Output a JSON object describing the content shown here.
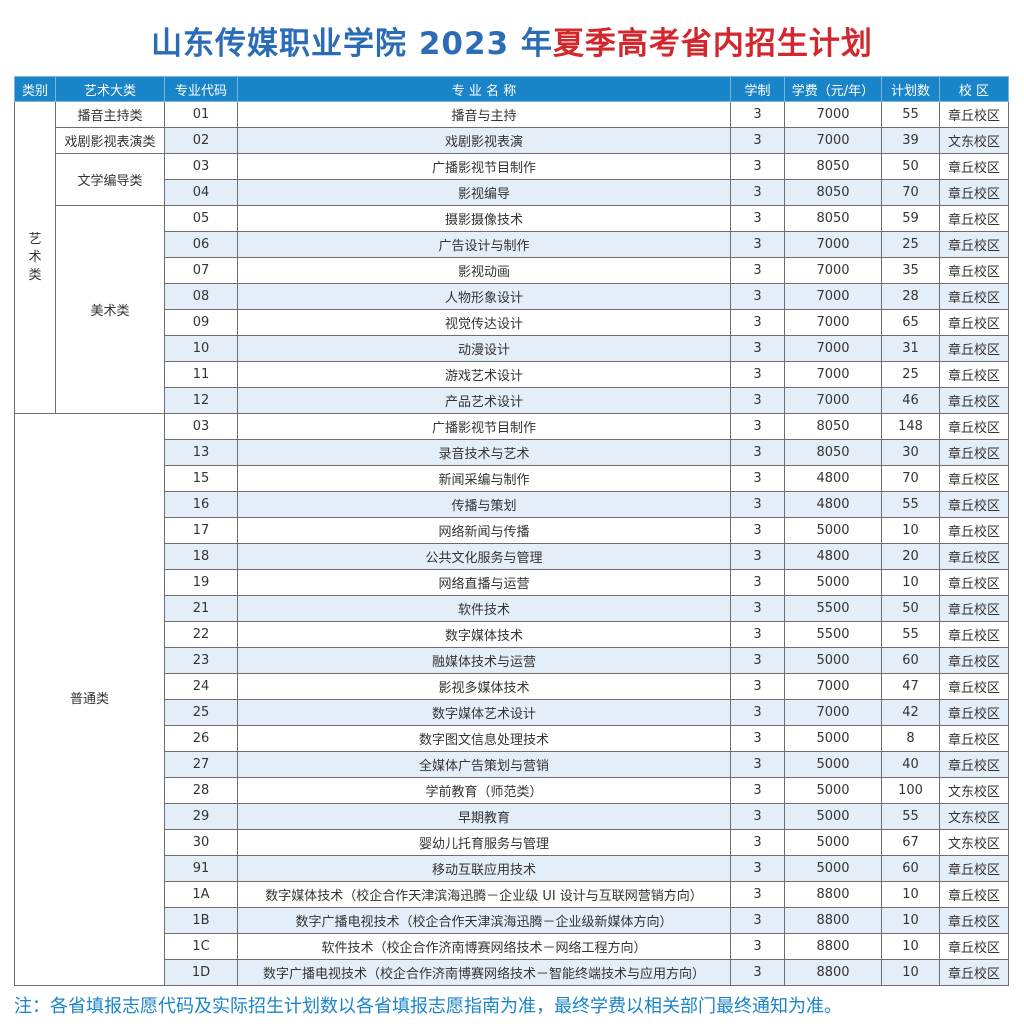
{
  "title": {
    "part1": "山东传媒职业学院 2023 年",
    "part2": "夏季高考省内招生计划"
  },
  "headers": [
    "类别",
    "艺术大类",
    "专业代码",
    "专 业 名 称",
    "学制",
    "学费（元/年）",
    "计划数",
    "校 区"
  ],
  "categories": {
    "art": "艺\n术\n类",
    "general": "普通类"
  },
  "subcategories": {
    "broadcast": "播音主持类",
    "drama": "戏剧影视表演类",
    "literature": "文学编导类",
    "fine_art": "美术类"
  },
  "rows": [
    {
      "code": "01",
      "name": "播音与主持",
      "years": "3",
      "fee": "7000",
      "plan": "55",
      "campus": "章丘校区"
    },
    {
      "code": "02",
      "name": "戏剧影视表演",
      "years": "3",
      "fee": "7000",
      "plan": "39",
      "campus": "文东校区"
    },
    {
      "code": "03",
      "name": "广播影视节目制作",
      "years": "3",
      "fee": "8050",
      "plan": "50",
      "campus": "章丘校区"
    },
    {
      "code": "04",
      "name": "影视编导",
      "years": "3",
      "fee": "8050",
      "plan": "70",
      "campus": "章丘校区"
    },
    {
      "code": "05",
      "name": "摄影摄像技术",
      "years": "3",
      "fee": "8050",
      "plan": "59",
      "campus": "章丘校区"
    },
    {
      "code": "06",
      "name": "广告设计与制作",
      "years": "3",
      "fee": "7000",
      "plan": "25",
      "campus": "章丘校区"
    },
    {
      "code": "07",
      "name": "影视动画",
      "years": "3",
      "fee": "7000",
      "plan": "35",
      "campus": "章丘校区"
    },
    {
      "code": "08",
      "name": "人物形象设计",
      "years": "3",
      "fee": "7000",
      "plan": "28",
      "campus": "章丘校区"
    },
    {
      "code": "09",
      "name": "视觉传达设计",
      "years": "3",
      "fee": "7000",
      "plan": "65",
      "campus": "章丘校区"
    },
    {
      "code": "10",
      "name": "动漫设计",
      "years": "3",
      "fee": "7000",
      "plan": "31",
      "campus": "章丘校区"
    },
    {
      "code": "11",
      "name": "游戏艺术设计",
      "years": "3",
      "fee": "7000",
      "plan": "25",
      "campus": "章丘校区"
    },
    {
      "code": "12",
      "name": "产品艺术设计",
      "years": "3",
      "fee": "7000",
      "plan": "46",
      "campus": "章丘校区"
    },
    {
      "code": "03",
      "name": "广播影视节目制作",
      "years": "3",
      "fee": "8050",
      "plan": "148",
      "campus": "章丘校区"
    },
    {
      "code": "13",
      "name": "录音技术与艺术",
      "years": "3",
      "fee": "8050",
      "plan": "30",
      "campus": "章丘校区"
    },
    {
      "code": "15",
      "name": "新闻采编与制作",
      "years": "3",
      "fee": "4800",
      "plan": "70",
      "campus": "章丘校区"
    },
    {
      "code": "16",
      "name": "传播与策划",
      "years": "3",
      "fee": "4800",
      "plan": "55",
      "campus": "章丘校区"
    },
    {
      "code": "17",
      "name": "网络新闻与传播",
      "years": "3",
      "fee": "5000",
      "plan": "10",
      "campus": "章丘校区"
    },
    {
      "code": "18",
      "name": "公共文化服务与管理",
      "years": "3",
      "fee": "4800",
      "plan": "20",
      "campus": "章丘校区"
    },
    {
      "code": "19",
      "name": "网络直播与运营",
      "years": "3",
      "fee": "5000",
      "plan": "10",
      "campus": "章丘校区"
    },
    {
      "code": "21",
      "name": "软件技术",
      "years": "3",
      "fee": "5500",
      "plan": "50",
      "campus": "章丘校区"
    },
    {
      "code": "22",
      "name": "数字媒体技术",
      "years": "3",
      "fee": "5500",
      "plan": "55",
      "campus": "章丘校区"
    },
    {
      "code": "23",
      "name": "融媒体技术与运营",
      "years": "3",
      "fee": "5000",
      "plan": "60",
      "campus": "章丘校区"
    },
    {
      "code": "24",
      "name": "影视多媒体技术",
      "years": "3",
      "fee": "7000",
      "plan": "47",
      "campus": "章丘校区"
    },
    {
      "code": "25",
      "name": "数字媒体艺术设计",
      "years": "3",
      "fee": "7000",
      "plan": "42",
      "campus": "章丘校区"
    },
    {
      "code": "26",
      "name": "数字图文信息处理技术",
      "years": "3",
      "fee": "5000",
      "plan": "8",
      "campus": "章丘校区"
    },
    {
      "code": "27",
      "name": "全媒体广告策划与营销",
      "years": "3",
      "fee": "5000",
      "plan": "40",
      "campus": "章丘校区"
    },
    {
      "code": "28",
      "name": "学前教育（师范类）",
      "years": "3",
      "fee": "5000",
      "plan": "100",
      "campus": "文东校区"
    },
    {
      "code": "29",
      "name": "早期教育",
      "years": "3",
      "fee": "5000",
      "plan": "55",
      "campus": "文东校区"
    },
    {
      "code": "30",
      "name": "婴幼儿托育服务与管理",
      "years": "3",
      "fee": "5000",
      "plan": "67",
      "campus": "文东校区"
    },
    {
      "code": "91",
      "name": "移动互联应用技术",
      "years": "3",
      "fee": "5000",
      "plan": "60",
      "campus": "章丘校区"
    },
    {
      "code": "1A",
      "name": "数字媒体技术（校企合作天津滨海迅腾－企业级 UI 设计与互联网营销方向）",
      "years": "3",
      "fee": "8800",
      "plan": "10",
      "campus": "章丘校区"
    },
    {
      "code": "1B",
      "name": "数字广播电视技术（校企合作天津滨海迅腾－企业级新媒体方向）",
      "years": "3",
      "fee": "8800",
      "plan": "10",
      "campus": "章丘校区"
    },
    {
      "code": "1C",
      "name": "软件技术（校企合作济南博赛网络技术－网络工程方向）",
      "years": "3",
      "fee": "8800",
      "plan": "10",
      "campus": "章丘校区"
    },
    {
      "code": "1D",
      "name": "数字广播电视技术（校企合作济南博赛网络技术－智能终端技术与应用方向）",
      "years": "3",
      "fee": "8800",
      "plan": "10",
      "campus": "章丘校区"
    }
  ],
  "note": "注：各省填报志愿代码及实际招生计划数以各省填报志愿指南为准，最终学费以相关部门最终通知为准。",
  "colors": {
    "header_bg": "#1a84c9",
    "alt_row": "#e4eef8",
    "title_blue": "#2a6db6",
    "title_red": "#d2272c"
  }
}
